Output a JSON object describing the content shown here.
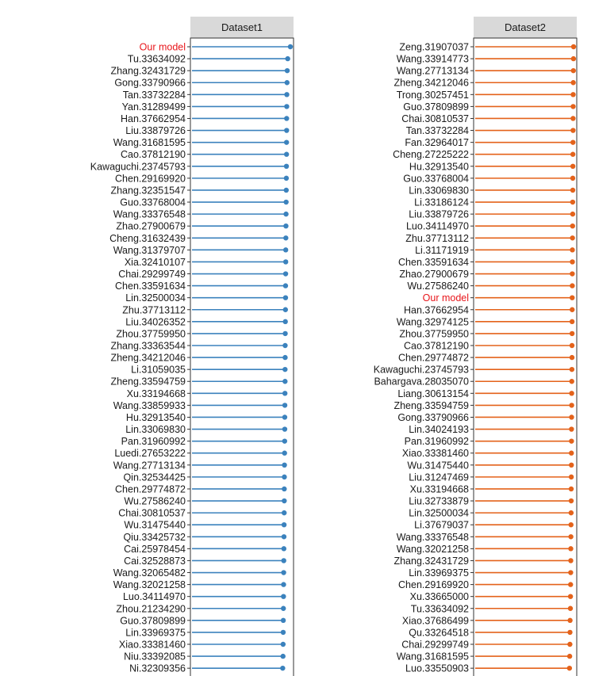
{
  "chart_data": [
    {
      "type": "lollipop",
      "title": "Dataset1",
      "color": "#3b82bd",
      "highlight_label": "Our model",
      "highlight_color": "#e8161b",
      "labels": [
        "Our model",
        "Tu.33634092",
        "Zhang.32431729",
        "Gong.33790966",
        "Tan.33732284",
        "Yan.31289499",
        "Han.37662954",
        "Liu.33879726",
        "Wang.31681595",
        "Cao.37812190",
        "Kawaguchi.23745793",
        "Chen.29169920",
        "Zhang.32351547",
        "Guo.33768004",
        "Wang.33376548",
        "Zhao.27900679",
        "Cheng.31632439",
        "Wang.31379707",
        "Xia.32410107",
        "Chai.29299749",
        "Chen.33591634",
        "Lin.32500034",
        "Zhu.37713112",
        "Liu.34026352",
        "Zhou.37759950",
        "Zhang.33363544",
        "Zheng.34212046",
        "Li.31059035",
        "Zheng.33594759",
        "Xu.33194668",
        "Wang.33859933",
        "Hu.32913540",
        "Lin.33069830",
        "Pan.31960992",
        "Luedi.27653222",
        "Wang.27713134",
        "Qin.32534425",
        "Chen.29774872",
        "Wu.27586240",
        "Chai.30810537",
        "Wu.31475440",
        "Qiu.33425732",
        "Cai.25978454",
        "Cai.32528873",
        "Wang.32065482",
        "Wang.32021258",
        "Luo.34114970",
        "Zhou.21234290",
        "Guo.37809899",
        "Lin.33969375",
        "Xiao.33381460",
        "Niu.33392085",
        "Ni.32309356"
      ],
      "values": [
        0.994,
        0.967,
        0.962,
        0.96,
        0.958,
        0.957,
        0.956,
        0.956,
        0.955,
        0.955,
        0.954,
        0.953,
        0.952,
        0.951,
        0.95,
        0.949,
        0.948,
        0.947,
        0.947,
        0.946,
        0.945,
        0.945,
        0.944,
        0.943,
        0.942,
        0.941,
        0.941,
        0.94,
        0.94,
        0.939,
        0.938,
        0.937,
        0.937,
        0.936,
        0.935,
        0.934,
        0.933,
        0.932,
        0.932,
        0.931,
        0.93,
        0.929,
        0.928,
        0.927,
        0.926,
        0.925,
        0.924,
        0.923,
        0.922,
        0.921,
        0.92,
        0.919,
        0.916
      ],
      "xlim": [
        0,
        1
      ]
    },
    {
      "type": "lollipop",
      "title": "Dataset2",
      "color": "#e4621a",
      "highlight_label": "Our model",
      "highlight_color": "#e8161b",
      "labels": [
        "Zeng.31907037",
        "Wang.33914773",
        "Wang.27713134",
        "Zheng.34212046",
        "Trong.30257451",
        "Guo.37809899",
        "Chai.30810537",
        "Tan.33732284",
        "Fan.32964017",
        "Cheng.27225222",
        "Hu.32913540",
        "Guo.33768004",
        "Lin.33069830",
        "Li.33186124",
        "Liu.33879726",
        "Luo.34114970",
        "Zhu.37713112",
        "Li.31171919",
        "Chen.33591634",
        "Zhao.27900679",
        "Wu.27586240",
        "Our model",
        "Han.37662954",
        "Wang.32974125",
        "Zhou.37759950",
        "Cao.37812190",
        "Chen.29774872",
        "Kawaguchi.23745793",
        "Bahargava.28035070",
        "Liang.30613154",
        "Zheng.33594759",
        "Gong.33790966",
        "Lin.34024193",
        "Pan.31960992",
        "Xiao.33381460",
        "Wu.31475440",
        "Liu.31247469",
        "Xu.33194668",
        "Liu.32733879",
        "Lin.32500034",
        "Li.37679037",
        "Wang.33376548",
        "Wang.32021258",
        "Zhang.32431729",
        "Lin.33969375",
        "Chen.29169920",
        "Xu.33665000",
        "Tu.33634092",
        "Xiao.37686499",
        "Qu.33264518",
        "Chai.29299749",
        "Wang.31681595",
        "Luo.33550903"
      ],
      "values": [
        0.979,
        0.978,
        0.977,
        0.976,
        0.975,
        0.975,
        0.974,
        0.974,
        0.973,
        0.972,
        0.972,
        0.971,
        0.971,
        0.97,
        0.97,
        0.969,
        0.968,
        0.967,
        0.967,
        0.966,
        0.966,
        0.965,
        0.965,
        0.964,
        0.964,
        0.963,
        0.963,
        0.962,
        0.961,
        0.96,
        0.96,
        0.959,
        0.958,
        0.958,
        0.957,
        0.957,
        0.956,
        0.955,
        0.955,
        0.954,
        0.953,
        0.952,
        0.951,
        0.951,
        0.95,
        0.949,
        0.948,
        0.947,
        0.944,
        0.943,
        0.942,
        0.94,
        0.938
      ],
      "xlim": [
        0,
        1
      ]
    }
  ]
}
